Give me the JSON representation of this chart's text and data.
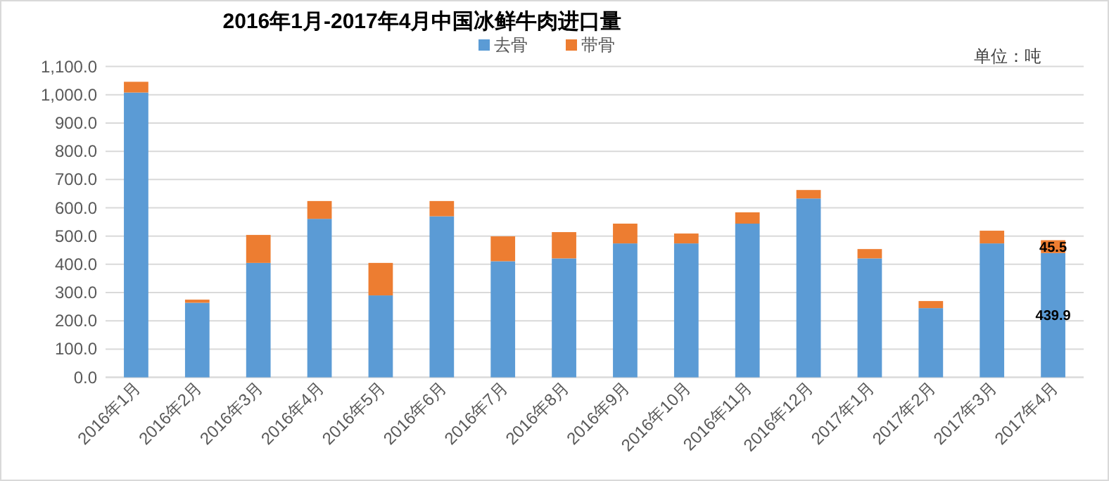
{
  "chart_data": {
    "type": "bar",
    "title": "2016年1月-2017年4月中国冰鲜牛肉进口量",
    "stacked": true,
    "annotations": [
      "单位：吨"
    ],
    "categories": [
      "2016年1月",
      "2016年2月",
      "2016年3月",
      "2016年4月",
      "2016年5月",
      "2016年6月",
      "2016年7月",
      "2016年8月",
      "2016年9月",
      "2016年10月",
      "2016年11月",
      "2016年12月",
      "2017年1月",
      "2017年2月",
      "2017年3月",
      "2017年4月"
    ],
    "series": [
      {
        "name": "去骨",
        "color": "#5b9bd5",
        "values": [
          1008,
          264,
          405,
          561,
          290,
          570,
          411,
          421,
          474,
          474,
          544,
          633,
          421,
          245,
          474,
          439.9
        ],
        "value_labels": [
          null,
          null,
          null,
          null,
          null,
          null,
          null,
          null,
          null,
          null,
          null,
          null,
          null,
          null,
          null,
          "439.9"
        ]
      },
      {
        "name": "带骨",
        "color": "#ed7d31",
        "values": [
          38,
          11,
          99,
          63,
          115,
          54,
          88,
          93,
          70,
          35,
          40,
          30,
          33,
          25,
          45,
          45.5
        ],
        "value_labels": [
          null,
          null,
          null,
          null,
          null,
          null,
          null,
          null,
          null,
          null,
          null,
          null,
          null,
          null,
          null,
          "45.5"
        ]
      }
    ],
    "ylim": [
      0,
      1100
    ],
    "yticks": [
      {
        "value": 0,
        "label": "0.0"
      },
      {
        "value": 100,
        "label": "100.0"
      },
      {
        "value": 200,
        "label": "200.0"
      },
      {
        "value": 300,
        "label": "300.0"
      },
      {
        "value": 400,
        "label": "400.0"
      },
      {
        "value": 500,
        "label": "500.0"
      },
      {
        "value": 600,
        "label": "600.0"
      },
      {
        "value": 700,
        "label": "700.0"
      },
      {
        "value": 800,
        "label": "800.0"
      },
      {
        "value": 900,
        "label": "900.0"
      },
      {
        "value": 1000,
        "label": "1,000.0"
      },
      {
        "value": 1100,
        "label": "1,100.0"
      }
    ],
    "grid": "y",
    "legend": "top"
  }
}
